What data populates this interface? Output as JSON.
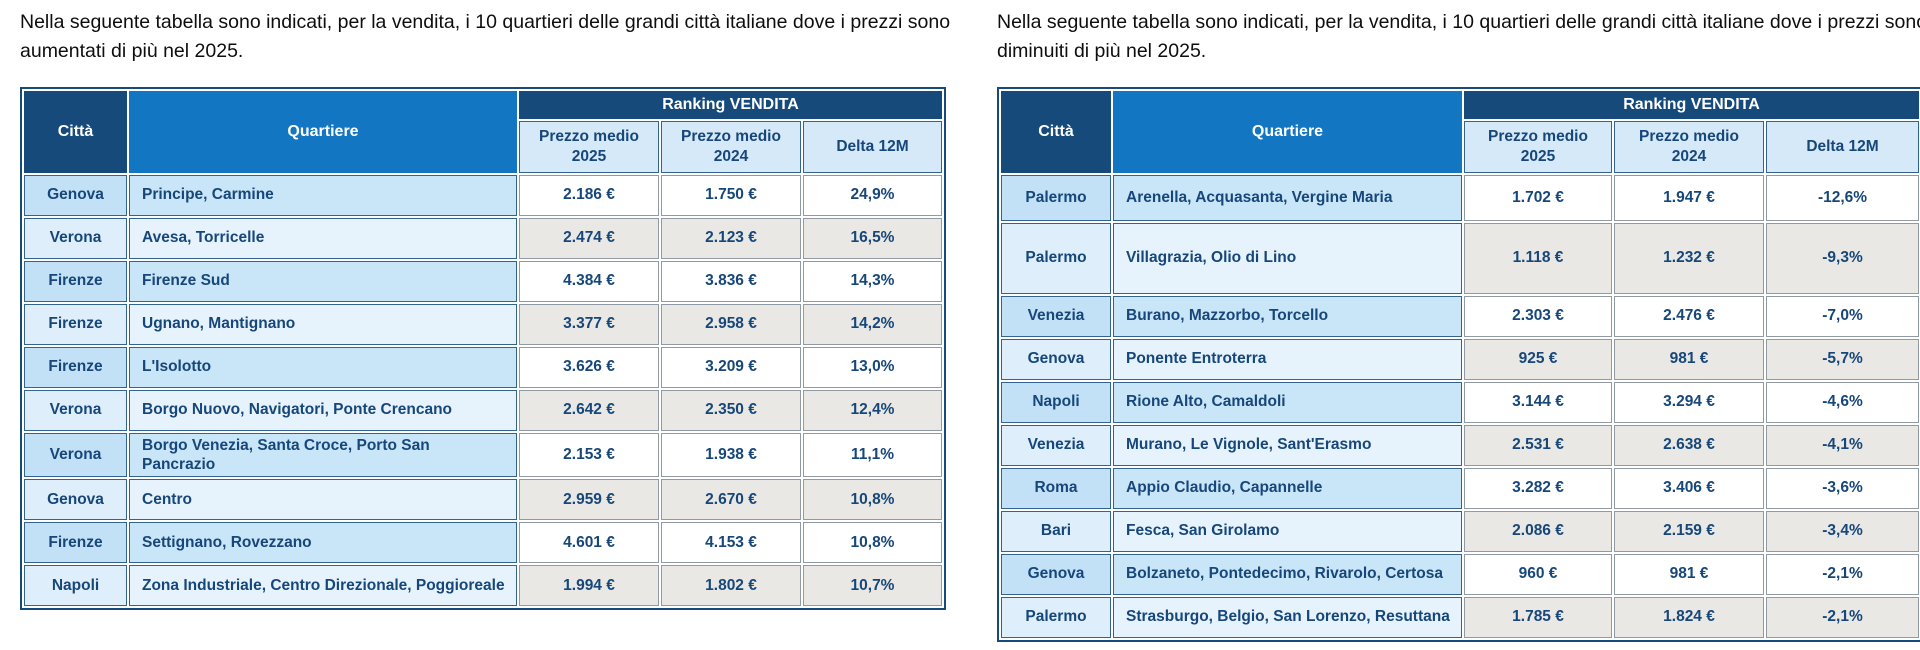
{
  "colors": {
    "header-dark": "#164A7B",
    "header-blue": "#1276C3",
    "subheader-bg": "#D6E9F8",
    "row-blue-a": "#C2E1F7",
    "row-blue-a2": "#C9E5F8",
    "row-blue-b": "#DEEFFB",
    "row-blue-b2": "#E6F3FC",
    "value-gray": "#E9E8E4",
    "text-navy": "#17477A"
  },
  "left_panel": {
    "title": "Nella seguente tabella sono indicati, per la vendita, i 10 quartieri delle grandi città italiane dove i prezzi sono aumentati di più nel 2025.",
    "table": {
      "col_city": "Città",
      "col_quartiere": "Quartiere",
      "group_header": "Ranking VENDITA",
      "col_p2025": "Prezzo medio 2025",
      "col_p2024": "Prezzo medio 2024",
      "col_delta": "Delta 12M",
      "rows": [
        {
          "city": "Genova",
          "quartiere": "Principe, Carmine",
          "p2025": "2.186 €",
          "p2024": "1.750 €",
          "delta": "24,9%"
        },
        {
          "city": "Verona",
          "quartiere": "Avesa, Torricelle",
          "p2025": "2.474 €",
          "p2024": "2.123 €",
          "delta": "16,5%"
        },
        {
          "city": "Firenze",
          "quartiere": "Firenze Sud",
          "p2025": "4.384 €",
          "p2024": "3.836 €",
          "delta": "14,3%"
        },
        {
          "city": "Firenze",
          "quartiere": "Ugnano, Mantignano",
          "p2025": "3.377 €",
          "p2024": "2.958 €",
          "delta": "14,2%"
        },
        {
          "city": "Firenze",
          "quartiere": "L'Isolotto",
          "p2025": "3.626 €",
          "p2024": "3.209 €",
          "delta": "13,0%"
        },
        {
          "city": "Verona",
          "quartiere": "Borgo Nuovo, Navigatori, Ponte Crencano",
          "p2025": "2.642 €",
          "p2024": "2.350 €",
          "delta": "12,4%"
        },
        {
          "city": "Verona",
          "quartiere": "Borgo Venezia, Santa Croce, Porto San Pancrazio",
          "p2025": "2.153 €",
          "p2024": "1.938 €",
          "delta": "11,1%"
        },
        {
          "city": "Genova",
          "quartiere": "Centro",
          "p2025": "2.959 €",
          "p2024": "2.670 €",
          "delta": "10,8%"
        },
        {
          "city": "Firenze",
          "quartiere": "Settignano, Rovezzano",
          "p2025": "4.601 €",
          "p2024": "4.153 €",
          "delta": "10,8%"
        },
        {
          "city": "Napoli",
          "quartiere": "Zona Industriale, Centro Direzionale, Poggioreale",
          "p2025": "1.994 €",
          "p2024": "1.802 €",
          "delta": "10,7%"
        }
      ]
    }
  },
  "right_panel": {
    "title": "Nella seguente tabella sono indicati, per la vendita, i 10 quartieri delle grandi città italiane dove i prezzi sono diminuiti di più nel 2025.",
    "table": {
      "col_city": "Città",
      "col_quartiere": "Quartiere",
      "group_header": "Ranking VENDITA",
      "col_p2025": "Prezzo medio 2025",
      "col_p2024": "Prezzo medio 2024",
      "col_delta": "Delta 12M",
      "rows": [
        {
          "city": "Palermo",
          "quartiere": "Arenella, Acquasanta, Vergine Maria",
          "p2025": "1.702 €",
          "p2024": "1.947 €",
          "delta": "-12,6%"
        },
        {
          "city": "Palermo",
          "quartiere": "Villagrazia, Olio di Lino",
          "p2025": "1.118 €",
          "p2024": "1.232 €",
          "delta": "-9,3%"
        },
        {
          "city": "Venezia",
          "quartiere": "Burano, Mazzorbo, Torcello",
          "p2025": "2.303 €",
          "p2024": "2.476 €",
          "delta": "-7,0%"
        },
        {
          "city": "Genova",
          "quartiere": "Ponente Entroterra",
          "p2025": "925 €",
          "p2024": "981 €",
          "delta": "-5,7%"
        },
        {
          "city": "Napoli",
          "quartiere": "Rione Alto, Camaldoli",
          "p2025": "3.144 €",
          "p2024": "3.294 €",
          "delta": "-4,6%"
        },
        {
          "city": "Venezia",
          "quartiere": "Murano, Le Vignole, Sant'Erasmo",
          "p2025": "2.531 €",
          "p2024": "2.638 €",
          "delta": "-4,1%"
        },
        {
          "city": "Roma",
          "quartiere": "Appio Claudio, Capannelle",
          "p2025": "3.282 €",
          "p2024": "3.406 €",
          "delta": "-3,6%"
        },
        {
          "city": "Bari",
          "quartiere": "Fesca, San Girolamo",
          "p2025": "2.086 €",
          "p2024": "2.159 €",
          "delta": "-3,4%"
        },
        {
          "city": "Genova",
          "quartiere": "Bolzaneto, Pontedecimo, Rivarolo, Certosa",
          "p2025": "960 €",
          "p2024": "981 €",
          "delta": "-2,1%"
        },
        {
          "city": "Palermo",
          "quartiere": "Strasburgo, Belgio, San Lorenzo, Resuttana",
          "p2025": "1.785 €",
          "p2024": "1.824 €",
          "delta": "-2,1%"
        }
      ]
    }
  }
}
